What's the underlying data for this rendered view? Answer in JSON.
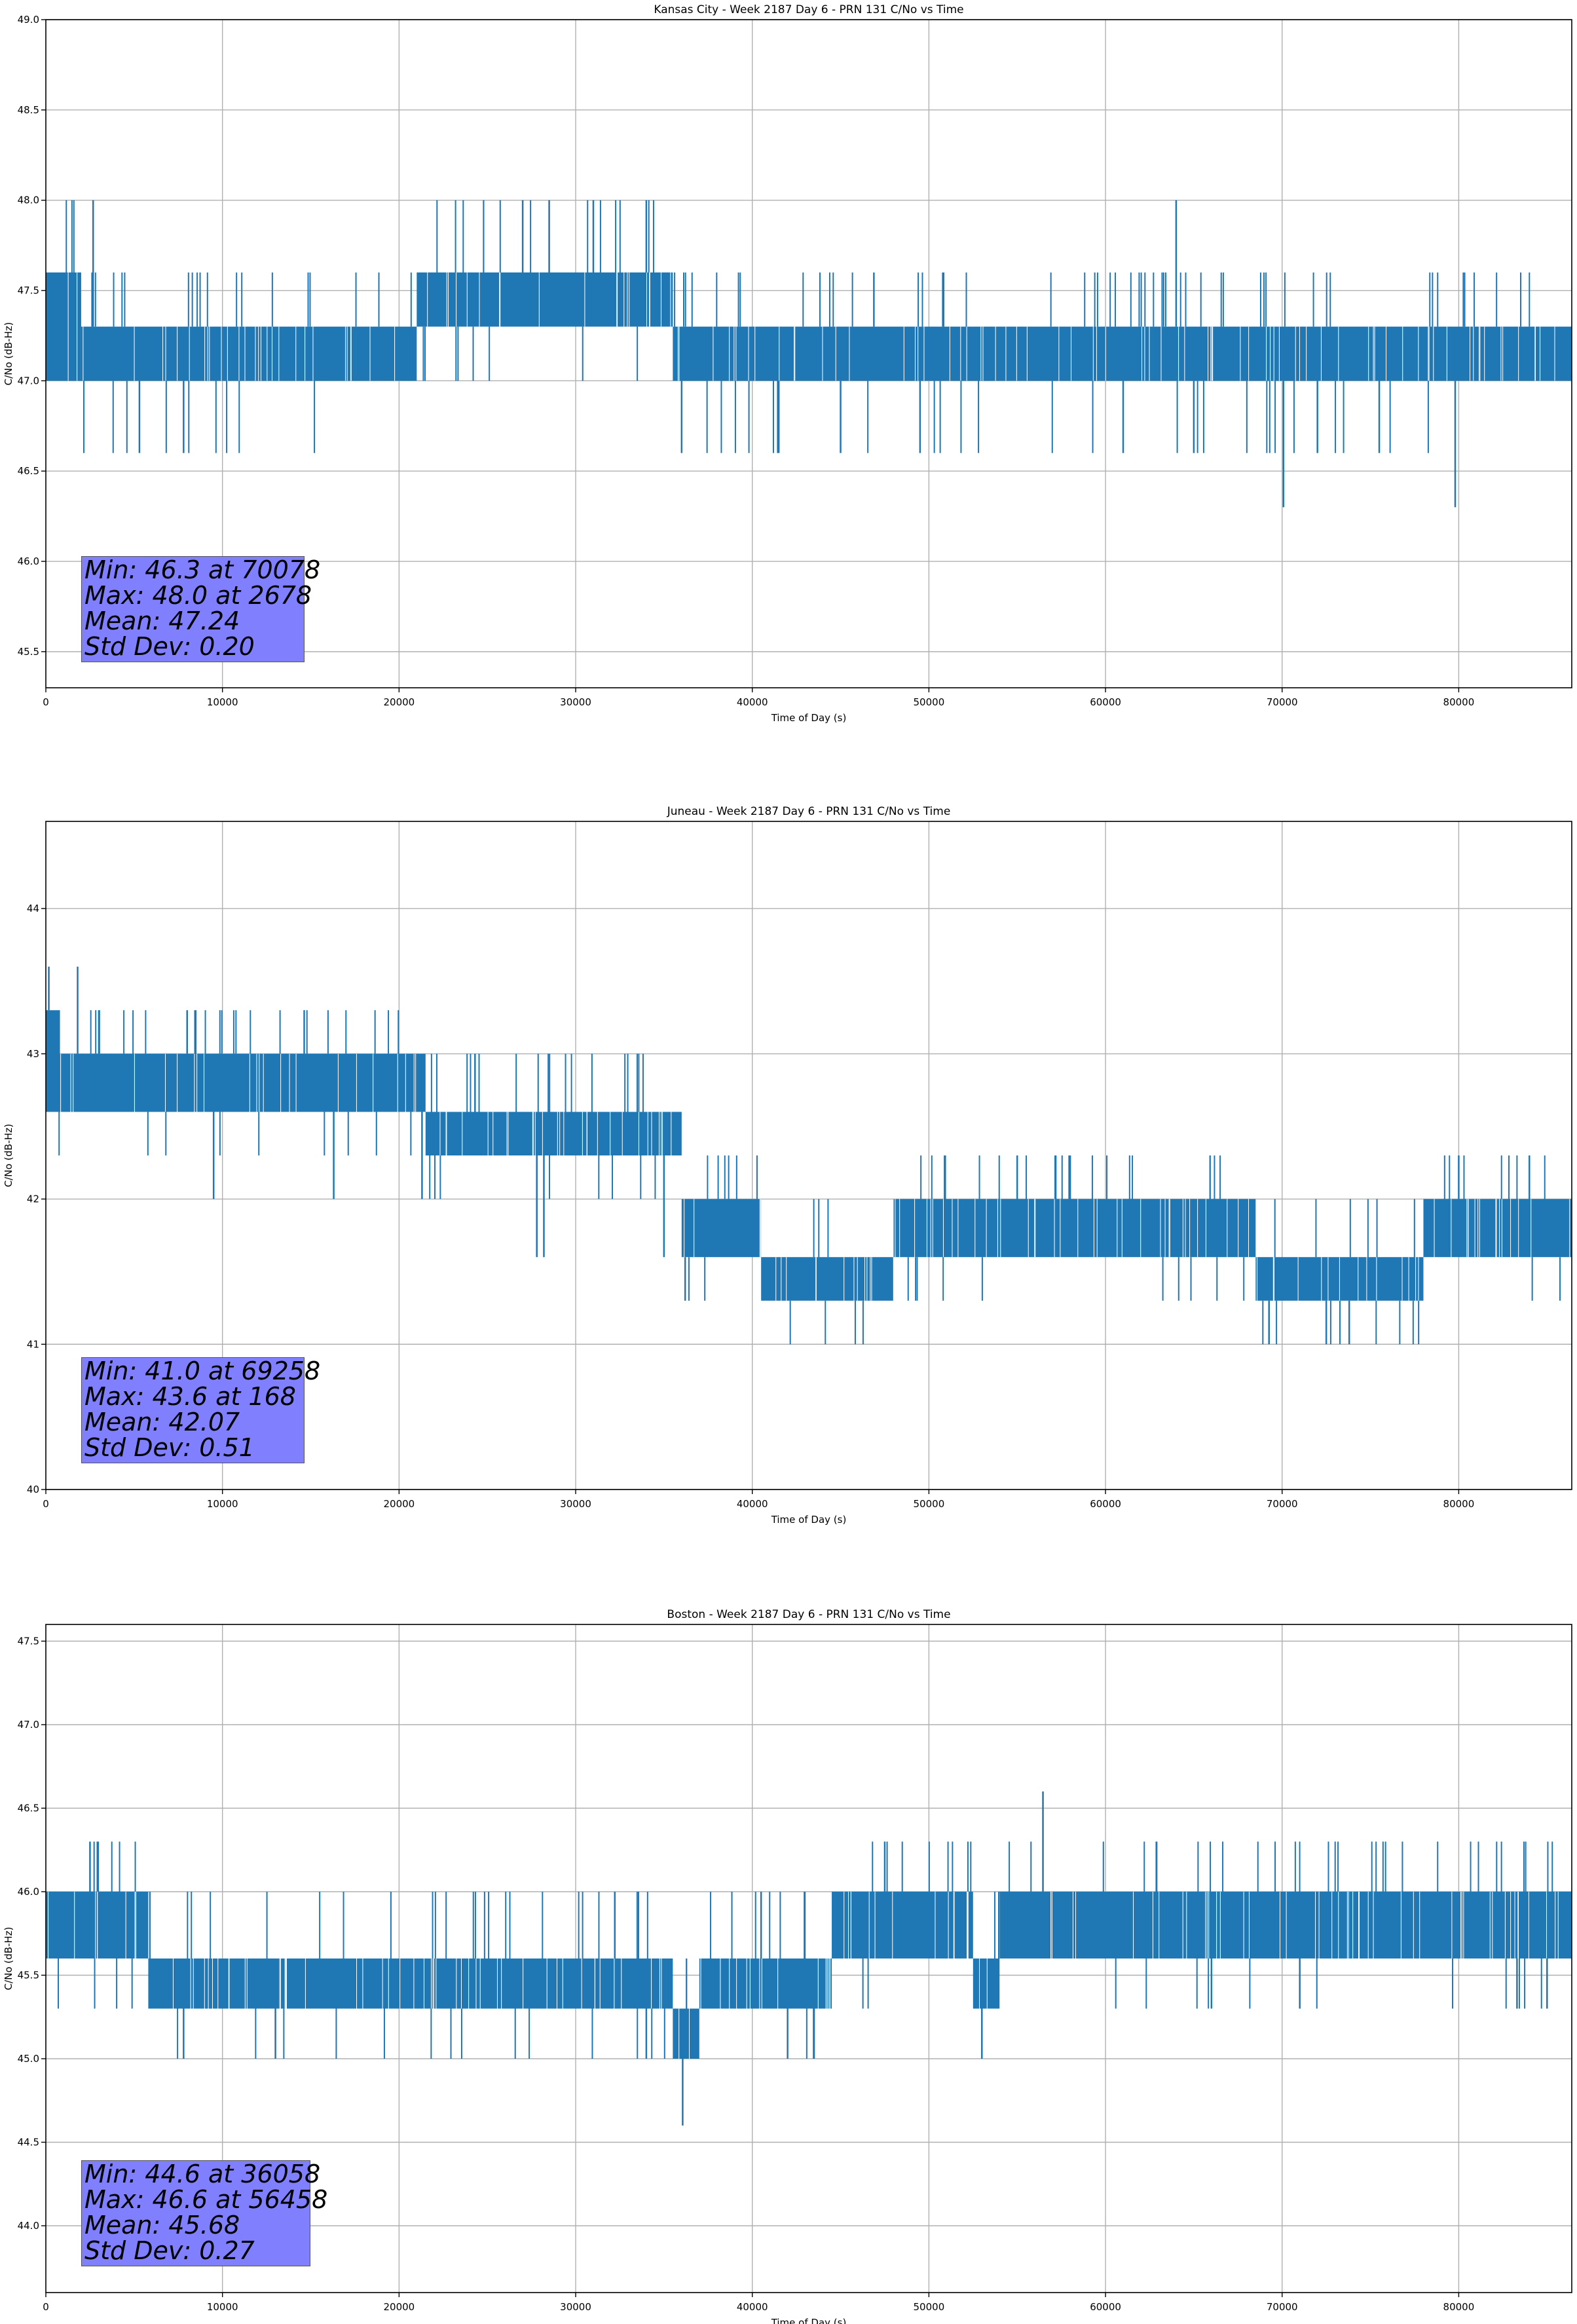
{
  "chart_data": [
    {
      "type": "line",
      "title": "Kansas City - Week 2187 Day 6 - PRN 131 C/No vs Time",
      "xlabel": "Time of Day (s)",
      "ylabel": "C/No (dB-Hz)",
      "xlim": [
        0,
        86400
      ],
      "ylim": [
        45.3,
        49.0
      ],
      "xticks": [
        "0",
        "10000",
        "20000",
        "30000",
        "40000",
        "50000",
        "60000",
        "70000",
        "80000"
      ],
      "yticks": [
        "45.5",
        "46.0",
        "46.5",
        "47.0",
        "47.5",
        "48.0",
        "48.5",
        "49.0"
      ],
      "grid": true,
      "color": "#1f77b4",
      "levels": [
        46.3,
        46.6,
        47.0,
        47.3,
        47.6,
        48.0
      ],
      "segments": [
        {
          "x": [
            0,
            2000
          ],
          "low": 47.0,
          "high": 47.6
        },
        {
          "x": [
            2000,
            21000
          ],
          "low": 47.0,
          "high": 47.3
        },
        {
          "x": [
            21000,
            35500
          ],
          "low": 47.3,
          "high": 47.6
        },
        {
          "x": [
            35500,
            86400
          ],
          "low": 47.0,
          "high": 47.3
        }
      ],
      "spikes": [
        {
          "x": 2678,
          "y": 48.0
        },
        {
          "x": 5300,
          "y": 46.6
        },
        {
          "x": 7800,
          "y": 46.6
        },
        {
          "x": 27000,
          "y": 48.0
        },
        {
          "x": 28500,
          "y": 48.0
        },
        {
          "x": 31000,
          "y": 48.0
        },
        {
          "x": 34000,
          "y": 48.0
        },
        {
          "x": 36000,
          "y": 46.6
        },
        {
          "x": 41500,
          "y": 46.6
        },
        {
          "x": 45000,
          "y": 46.6
        },
        {
          "x": 49500,
          "y": 46.6
        },
        {
          "x": 61000,
          "y": 46.6
        },
        {
          "x": 64000,
          "y": 48.0
        },
        {
          "x": 65000,
          "y": 46.6
        },
        {
          "x": 70078,
          "y": 46.3
        },
        {
          "x": 72000,
          "y": 46.6
        },
        {
          "x": 75500,
          "y": 46.6
        },
        {
          "x": 79800,
          "y": 46.3
        }
      ],
      "stats": {
        "min": "Min: 46.3 at 70078",
        "max": "Max: 48.0 at 2678",
        "mean": "Mean: 47.24",
        "std": "Std Dev: 0.20"
      }
    },
    {
      "type": "line",
      "title": "Juneau - Week 2187 Day 6 - PRN 131 C/No vs Time",
      "xlabel": "Time of Day (s)",
      "ylabel": "C/No (dB-Hz)",
      "xlim": [
        0,
        86400
      ],
      "ylim": [
        40.0,
        44.6
      ],
      "xticks": [
        "0",
        "10000",
        "20000",
        "30000",
        "40000",
        "50000",
        "60000",
        "70000",
        "80000"
      ],
      "yticks": [
        "40",
        "41",
        "42",
        "43",
        "44"
      ],
      "grid": true,
      "color": "#1f77b4",
      "levels": [
        41.0,
        41.3,
        41.6,
        42.0,
        42.3,
        42.6,
        43.0,
        43.3,
        43.6
      ],
      "segments": [
        {
          "x": [
            0,
            800
          ],
          "low": 42.6,
          "high": 43.3
        },
        {
          "x": [
            800,
            21500
          ],
          "low": 42.6,
          "high": 43.0
        },
        {
          "x": [
            21500,
            36000
          ],
          "low": 42.3,
          "high": 42.6
        },
        {
          "x": [
            36000,
            40500
          ],
          "low": 41.6,
          "high": 42.0
        },
        {
          "x": [
            40500,
            48000
          ],
          "low": 41.3,
          "high": 41.6
        },
        {
          "x": [
            48000,
            68500
          ],
          "low": 41.6,
          "high": 42.0
        },
        {
          "x": [
            68500,
            78000
          ],
          "low": 41.3,
          "high": 41.6
        },
        {
          "x": [
            78000,
            86400
          ],
          "low": 41.6,
          "high": 42.0
        }
      ],
      "spikes": [
        {
          "x": 168,
          "y": 43.6
        },
        {
          "x": 1800,
          "y": 43.6
        },
        {
          "x": 3000,
          "y": 43.3
        },
        {
          "x": 8000,
          "y": 43.3
        },
        {
          "x": 9500,
          "y": 42.0
        },
        {
          "x": 16300,
          "y": 42.0
        },
        {
          "x": 21300,
          "y": 42.0
        },
        {
          "x": 24300,
          "y": 43.0
        },
        {
          "x": 27800,
          "y": 41.6
        },
        {
          "x": 28200,
          "y": 41.6
        },
        {
          "x": 35000,
          "y": 41.6
        },
        {
          "x": 36200,
          "y": 41.3
        },
        {
          "x": 55000,
          "y": 42.3
        },
        {
          "x": 58000,
          "y": 42.3
        },
        {
          "x": 69258,
          "y": 41.0
        },
        {
          "x": 72500,
          "y": 41.0
        },
        {
          "x": 73800,
          "y": 41.0
        },
        {
          "x": 80000,
          "y": 42.3
        },
        {
          "x": 84000,
          "y": 42.3
        }
      ],
      "stats": {
        "min": "Min: 41.0 at 69258",
        "max": "Max: 43.6 at 168",
        "mean": "Mean: 42.07",
        "std": "Std Dev: 0.51"
      }
    },
    {
      "type": "line",
      "title": "Boston - Week 2187 Day 6 - PRN 131 C/No vs Time",
      "xlabel": "Time of Day (s)",
      "ylabel": "C/No (dB-Hz)",
      "xlim": [
        0,
        86400
      ],
      "ylim": [
        43.6,
        47.6
      ],
      "xticks": [
        "0",
        "10000",
        "20000",
        "30000",
        "40000",
        "50000",
        "60000",
        "70000",
        "80000"
      ],
      "yticks": [
        "44.0",
        "44.5",
        "45.0",
        "45.5",
        "46.0",
        "46.5",
        "47.0",
        "47.5"
      ],
      "grid": true,
      "color": "#1f77b4",
      "levels": [
        44.6,
        45.0,
        45.3,
        45.6,
        46.0,
        46.3,
        46.6
      ],
      "segments": [
        {
          "x": [
            0,
            5800
          ],
          "low": 45.6,
          "high": 46.0
        },
        {
          "x": [
            5800,
            35500
          ],
          "low": 45.3,
          "high": 45.6
        },
        {
          "x": [
            35500,
            37000
          ],
          "low": 45.0,
          "high": 45.3
        },
        {
          "x": [
            37000,
            44500
          ],
          "low": 45.3,
          "high": 45.6
        },
        {
          "x": [
            44500,
            52500
          ],
          "low": 45.6,
          "high": 46.0
        },
        {
          "x": [
            52500,
            54000
          ],
          "low": 45.3,
          "high": 45.6
        },
        {
          "x": [
            54000,
            86400
          ],
          "low": 45.6,
          "high": 46.0
        }
      ],
      "spikes": [
        {
          "x": 2500,
          "y": 46.3
        },
        {
          "x": 7800,
          "y": 45.0
        },
        {
          "x": 13000,
          "y": 45.0
        },
        {
          "x": 34000,
          "y": 45.0
        },
        {
          "x": 36058,
          "y": 44.6
        },
        {
          "x": 40500,
          "y": 46.0
        },
        {
          "x": 42000,
          "y": 45.0
        },
        {
          "x": 43500,
          "y": 45.0
        },
        {
          "x": 47500,
          "y": 46.3
        },
        {
          "x": 53000,
          "y": 45.0
        },
        {
          "x": 56458,
          "y": 46.6
        },
        {
          "x": 66000,
          "y": 45.3
        },
        {
          "x": 71000,
          "y": 45.3
        },
        {
          "x": 83300,
          "y": 45.3
        }
      ],
      "stats": {
        "min": "Min: 44.6 at 36058",
        "max": "Max: 46.6 at 56458",
        "mean": "Mean: 45.68",
        "std": "Std Dev: 0.27"
      }
    }
  ]
}
